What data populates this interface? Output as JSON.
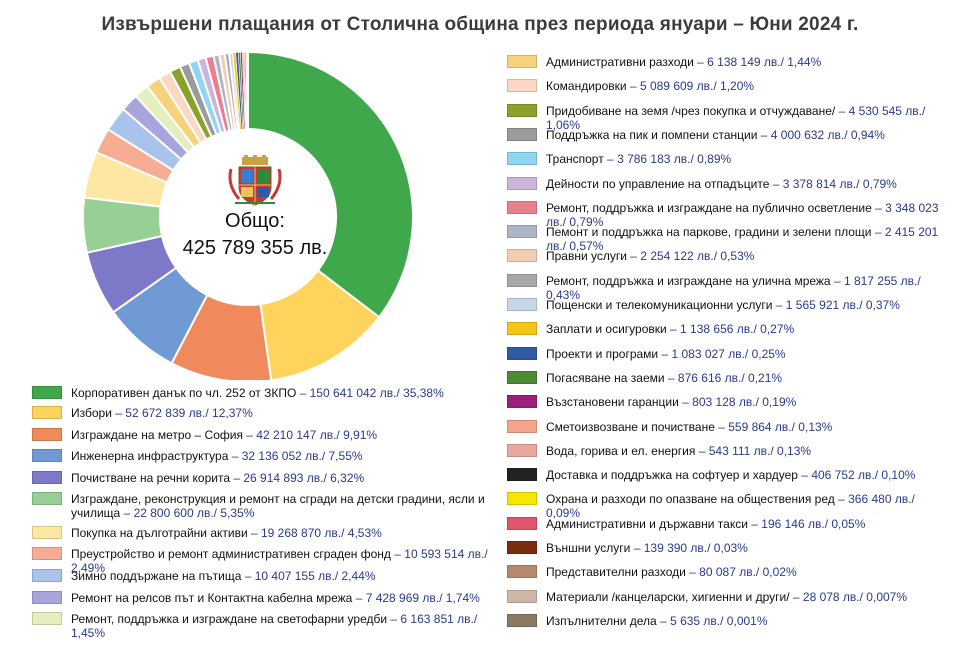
{
  "title": "Извършени плащания от Столична община през периода януари – Юни 2024 г.",
  "center": {
    "label": "Общо:",
    "value": "425 789 355 лв."
  },
  "chart_data": {
    "type": "pie",
    "title": "Извършени плащания от Столична община през периода януари – Юни 2024 г.",
    "total": "425 789 355 лв.",
    "slices": [
      {
        "label": "Корпоративен данък по чл. 252 от ЗКПО",
        "value": 150641042,
        "display": "150 641 042 лв./ 35,38%",
        "color": "#3fa84a"
      },
      {
        "label": "Избори",
        "value": 52672839,
        "display": "52 672 839 лв./ 12,37%",
        "color": "#ffd45c"
      },
      {
        "label": "Изграждане на метро – София",
        "value": 42210147,
        "display": "42 210 147 лв./ 9,91%",
        "color": "#f08a5d"
      },
      {
        "label": "Инженерна инфраструктура",
        "value": 32136052,
        "display": "32 136 052 лв./ 7,55%",
        "color": "#6f9ad4"
      },
      {
        "label": "Почистване на речни корита",
        "value": 26914893,
        "display": "26 914 893 лв./ 6,32%",
        "color": "#7d78c7"
      },
      {
        "label": "Изграждане, реконструкция и ремонт на сгради на детски градини, ясли и училища",
        "value": 22800600,
        "display": "22 800 600 лв./ 5,35%",
        "color": "#97cf95"
      },
      {
        "label": "Покупка на дълготрайни активи",
        "value": 19268870,
        "display": "19 268 870 лв./ 4,53%",
        "color": "#fde7a3"
      },
      {
        "label": "Преустройство и ремонт административен сграден фонд",
        "value": 10593514,
        "display": "10 593 514 лв./ 2,49%",
        "color": "#f6ad93"
      },
      {
        "label": "Зимно поддържане на пътища",
        "value": 10407155,
        "display": "10 407 155 лв./ 2,44%",
        "color": "#a9c3ea"
      },
      {
        "label": "Ремонт на релсов път и Контактна кабелна мрежа",
        "value": 7428969,
        "display": "7 428 969 лв./ 1,74%",
        "color": "#a8a4dc"
      },
      {
        "label": "Ремонт, поддръжка и изграждане на светофарни уредби",
        "value": 6163851,
        "display": "6 163 851 лв./ 1,45%",
        "color": "#e3efbf"
      },
      {
        "label": "Административни разходи",
        "value": 6138149,
        "display": "6 138 149 лв./ 1,44%",
        "color": "#f6d37a"
      },
      {
        "label": "Командировки",
        "value": 5089609,
        "display": "5 089 609 лв./ 1,20%",
        "color": "#fbd7c5"
      },
      {
        "label": "Придобиване на земя /чрез покупка и отчуждаване/",
        "value": 4530545,
        "display": "4 530 545 лв./ 1,06%",
        "color": "#8aa22a"
      },
      {
        "label": "Поддръжка на пик и помпени станции",
        "value": 4000632,
        "display": "4 000 632 лв./ 0,94%",
        "color": "#9b9b9b"
      },
      {
        "label": "Транспорт",
        "value": 3786183,
        "display": "3 786 183 лв./ 0,89%",
        "color": "#8fd6f2"
      },
      {
        "label": "Дейности по управление на отпадъците",
        "value": 3378814,
        "display": "3 378 814 лв./ 0,79%",
        "color": "#cbb5dc"
      },
      {
        "label": "Ремонт, поддръжка и изграждане на публично осветление",
        "value": 3348023,
        "display": "3 348 023 лв./ 0,79%",
        "color": "#e9808d"
      },
      {
        "label": "Пемонт и поддръжка на паркове, градини и зелени площи",
        "value": 2415201,
        "display": "2 415 201 лв./ 0,57%",
        "color": "#aab6c6"
      },
      {
        "label": "Правни услуги",
        "value": 2254122,
        "display": "2 254 122 лв./ 0,53%",
        "color": "#f3ccb4"
      },
      {
        "label": "Ремонт, поддръжка и изграждане на улична мрежа",
        "value": 1817255,
        "display": "1 817 255 лв./ 0,43%",
        "color": "#a8a8a8"
      },
      {
        "label": "Пощенски и телекомуникационни услуги",
        "value": 1565921,
        "display": "1 565 921 лв./ 0,37%",
        "color": "#c7d7ea"
      },
      {
        "label": "Заплати и осигуровки",
        "value": 1138656,
        "display": "1 138 656 лв./ 0,27%",
        "color": "#f5c518"
      },
      {
        "label": "Проекти и програми",
        "value": 1083027,
        "display": "1 083 027 лв./ 0,25%",
        "color": "#2f5aa6"
      },
      {
        "label": "Погасяване на заеми",
        "value": 876616,
        "display": "876 616 лв./ 0,21%",
        "color": "#4e8a34"
      },
      {
        "label": "Възстановени гаранции",
        "value": 803128,
        "display": "803 128 лв./ 0,19%",
        "color": "#9b1f78"
      },
      {
        "label": "Сметоизвозване и почистване",
        "value": 559864,
        "display": "559 864 лв./ 0,13%",
        "color": "#f4a48a"
      },
      {
        "label": "Вода, горива и ел. енергия",
        "value": 543111,
        "display": "543 111 лв./ 0,13%",
        "color": "#e9a79e"
      },
      {
        "label": "Доставка и поддръжка на софтуер и хардуер",
        "value": 406752,
        "display": "406 752 лв./ 0,10%",
        "color": "#222222"
      },
      {
        "label": "Охрана и разходи по опазване на обществения ред",
        "value": 366480,
        "display": "366 480 лв./ 0,09%",
        "color": "#f4e600"
      },
      {
        "label": "Административни и държавни такси",
        "value": 196146,
        "display": "196 146 лв./ 0,05%",
        "color": "#e0546e"
      },
      {
        "label": "Външни услуги",
        "value": 139390,
        "display": "139 390 лв./ 0,03%",
        "color": "#7a2e0f"
      },
      {
        "label": "Представителни разходи",
        "value": 80087,
        "display": "80 087 лв./ 0,02%",
        "color": "#b58a6a"
      },
      {
        "label": "Материали /канцеларски, хигиенни и други/",
        "value": 28078,
        "display": "28 078 лв./ 0,007%",
        "color": "#cdb7ab"
      },
      {
        "label": "Изпълнителни дела",
        "value": 5635,
        "display": "5 635 лв./ 0,001%",
        "color": "#8a7b62"
      }
    ]
  }
}
